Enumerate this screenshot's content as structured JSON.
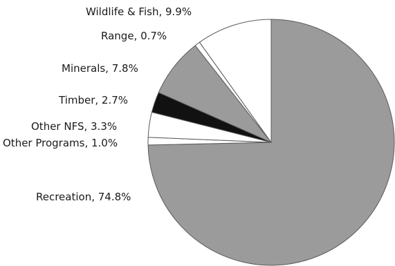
{
  "chart_data": {
    "type": "pie",
    "start_angle_deg": 0,
    "direction": "clockwise",
    "slices": [
      {
        "name": "Recreation",
        "value": 74.8,
        "label": "Recreation, 74.8%",
        "color": "#9b9b9b"
      },
      {
        "name": "Other Programs",
        "value": 1.0,
        "label": "Other Programs, 1.0%",
        "color": "#ffffff"
      },
      {
        "name": "Other NFS",
        "value": 3.3,
        "label": "Other NFS, 3.3%",
        "color": "#ffffff"
      },
      {
        "name": "Timber",
        "value": 2.7,
        "label": "Timber, 2.7%",
        "color": "#111111"
      },
      {
        "name": "Minerals",
        "value": 7.8,
        "label": "Minerals, 7.8%",
        "color": "#9b9b9b"
      },
      {
        "name": "Range",
        "value": 0.7,
        "label": "Range, 0.7%",
        "color": "#ffffff"
      },
      {
        "name": "Wildlife & Fish",
        "value": 9.9,
        "label": "Wildlife & Fish, 9.9%",
        "color": "#ffffff"
      }
    ]
  }
}
